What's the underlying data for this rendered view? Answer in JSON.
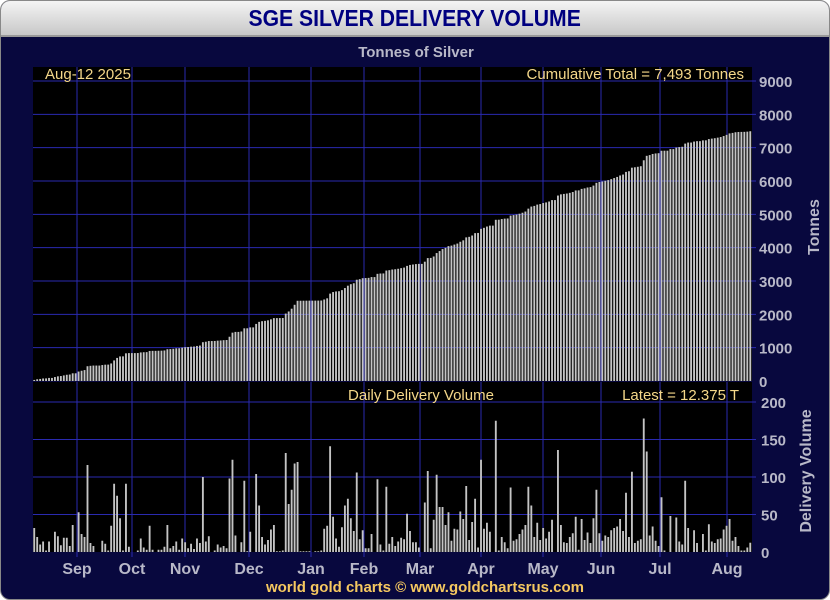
{
  "chart_data": [
    {
      "type": "bar",
      "title": "SGE SILVER DELIVERY VOLUME",
      "subtitle": "Tonnes of Silver",
      "date_label": "Aug-12  2025",
      "annotation": "Cumulative Total = 7,493 Tonnes",
      "ylabel": "Tonnes",
      "ylim": [
        0,
        9000
      ],
      "yticks": [
        "0",
        "1000",
        "2000",
        "3000",
        "4000",
        "5000",
        "6000",
        "7000",
        "8000",
        "9000"
      ],
      "cumulative_total": 7493,
      "series_note": "cumulative sum of daily delivery volume",
      "grid": true
    },
    {
      "type": "bar",
      "title": "Daily Delivery Volume",
      "annotation": "Latest = 12.375 T",
      "ylabel": "Delivery Volume",
      "ylim": [
        0,
        200
      ],
      "yticks": [
        "0",
        "50",
        "100",
        "150",
        "200"
      ],
      "xticks": [
        "Sep",
        "Oct",
        "Nov",
        "Dec",
        "Jan",
        "Feb",
        "Mar",
        "Apr",
        "May",
        "Jun",
        "Jul",
        "Aug"
      ],
      "grid": true,
      "values": [
        32,
        20,
        10,
        14,
        2,
        14,
        0,
        27,
        21,
        9,
        19,
        19,
        8,
        36,
        0,
        53,
        24,
        20,
        116,
        12,
        8,
        0,
        0,
        15,
        11,
        2,
        35,
        91,
        75,
        45,
        2,
        91,
        7,
        0,
        0,
        2,
        18,
        6,
        3,
        35,
        3,
        0,
        3,
        3,
        7,
        36,
        5,
        8,
        14,
        3,
        18,
        13,
        5,
        11,
        4,
        18,
        12,
        100,
        14,
        21,
        0,
        2,
        10,
        6,
        8,
        5,
        98,
        123,
        22,
        0,
        13,
        95,
        1,
        27,
        0,
        104,
        62,
        20,
        10,
        16,
        30,
        36,
        1,
        1,
        2,
        132,
        64,
        83,
        118,
        120,
        1,
        1,
        1,
        1,
        0,
        1,
        1,
        2,
        31,
        35,
        141,
        47,
        18,
        7,
        33,
        62,
        71,
        45,
        28,
        106,
        17,
        29,
        5,
        5,
        24,
        0,
        97,
        10,
        2,
        87,
        11,
        20,
        8,
        14,
        19,
        17,
        51,
        28,
        13,
        13,
        6,
        0,
        66,
        108,
        5,
        43,
        103,
        60,
        60,
        36,
        53,
        15,
        31,
        30,
        54,
        44,
        88,
        16,
        40,
        71,
        6,
        123,
        31,
        39,
        27,
        0,
        175,
        2,
        20,
        13,
        5,
        86,
        15,
        17,
        24,
        30,
        36,
        87,
        62,
        20,
        39,
        16,
        32,
        18,
        27,
        43,
        0,
        136,
        36,
        13,
        12,
        20,
        25,
        47,
        3,
        44,
        16,
        26,
        12,
        45,
        83,
        25,
        15,
        22,
        20,
        29,
        32,
        34,
        44,
        28,
        79,
        20,
        107,
        12,
        15,
        17,
        178,
        134,
        22,
        34,
        15,
        8,
        73,
        2,
        0,
        48,
        0,
        46,
        14,
        10,
        95,
        32,
        0,
        29,
        12,
        0,
        24,
        2,
        37,
        14,
        12,
        17,
        18,
        30,
        35,
        44,
        15,
        20,
        8,
        2,
        2,
        6,
        12.375
      ]
    }
  ],
  "footer": "world gold charts © www.goldchartsrus.com",
  "colors": {
    "background": "#08083e",
    "plot": "#000000",
    "grid": "#2a2ab0",
    "gold": "#f5d88a",
    "bar": "#c4c4c4",
    "axis_text": "#b8b8c8",
    "title": "#000080"
  }
}
